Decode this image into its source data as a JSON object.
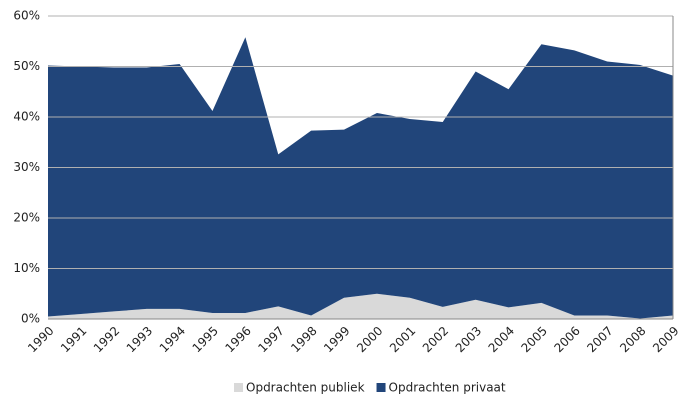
{
  "chart_data": {
    "type": "stacked_area",
    "categories": [
      "1990",
      "1991",
      "1992",
      "1993",
      "1994",
      "1995",
      "1996",
      "1997",
      "1998",
      "1999",
      "2000",
      "2001",
      "2002",
      "2003",
      "2004",
      "2005",
      "2006",
      "2007",
      "2008",
      "2009"
    ],
    "series": [
      {
        "name": "Opdrachten publiek",
        "color": "#d9d9d9",
        "values": [
          0.5,
          1.0,
          1.5,
          2.0,
          2.0,
          1.2,
          1.2,
          2.5,
          0.7,
          4.2,
          5.0,
          4.2,
          2.4,
          3.8,
          2.3,
          3.2,
          0.7,
          0.7,
          0.1,
          0.7
        ]
      },
      {
        "name": "Opdrachten privaat",
        "color": "#21457a",
        "values": [
          49.7,
          49.0,
          48.3,
          47.8,
          48.5,
          40.0,
          54.6,
          30.1,
          36.6,
          33.3,
          35.8,
          35.4,
          36.6,
          45.2,
          43.2,
          51.2,
          52.5,
          50.3,
          50.2,
          47.5
        ]
      }
    ],
    "ylim": [
      0,
      60
    ],
    "yticks": [
      {
        "value": 0,
        "label": "0%"
      },
      {
        "value": 10,
        "label": "10%"
      },
      {
        "value": 20,
        "label": "20%"
      },
      {
        "value": 30,
        "label": "30%"
      },
      {
        "value": 40,
        "label": "40%"
      },
      {
        "value": 50,
        "label": "50%"
      },
      {
        "value": 60,
        "label": "60%"
      }
    ],
    "grid": true,
    "legend": "bottom"
  }
}
